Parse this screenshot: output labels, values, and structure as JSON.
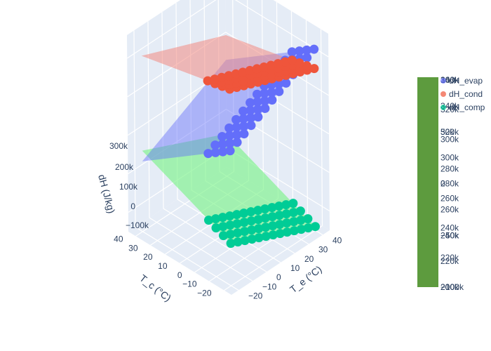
{
  "chart_data": {
    "type": "surface3d",
    "title": "",
    "axes": {
      "x": {
        "label": "T_c (°C)",
        "ticks": [
          "−20",
          "−10",
          "0",
          "10",
          "20",
          "30",
          "40"
        ],
        "range": [
          -25,
          45
        ]
      },
      "y": {
        "label": "T_e (°C)",
        "ticks": [
          "−20",
          "−10",
          "0",
          "10",
          "20",
          "30",
          "40"
        ],
        "range": [
          -25,
          45
        ]
      },
      "z": {
        "label": "dH (J/kg)",
        "ticks": [
          "−100k",
          "0",
          "100k",
          "200k",
          "300k"
        ],
        "range": [
          -150000,
          360000
        ]
      }
    },
    "series": [
      {
        "name": "dH_evap",
        "kind": "surface",
        "color": "#636efa"
      },
      {
        "name": "dH_cond",
        "kind": "surface",
        "color": "#ef553b"
      },
      {
        "name": "dH_comp",
        "kind": "surface",
        "color": "#00cc96"
      }
    ],
    "legend": {
      "position": "top-right",
      "items": [
        "dH_evap",
        "dH_cond",
        "dH_comp"
      ]
    },
    "colorbars": [
      {
        "ticks": [
          "360k",
          "340k",
          "320k",
          "300k",
          "280k",
          "260k",
          "240k",
          "220k",
          "200k"
        ]
      },
      {
        "ticks": [
          "340k",
          "320k",
          "300k",
          "280k",
          "260k",
          "240k",
          "220k",
          "200k"
        ]
      },
      {
        "ticks": [
          "100k",
          "50k",
          "0",
          "−50k",
          "−100k"
        ]
      }
    ],
    "colorbar_color": "#5d9b3e"
  }
}
